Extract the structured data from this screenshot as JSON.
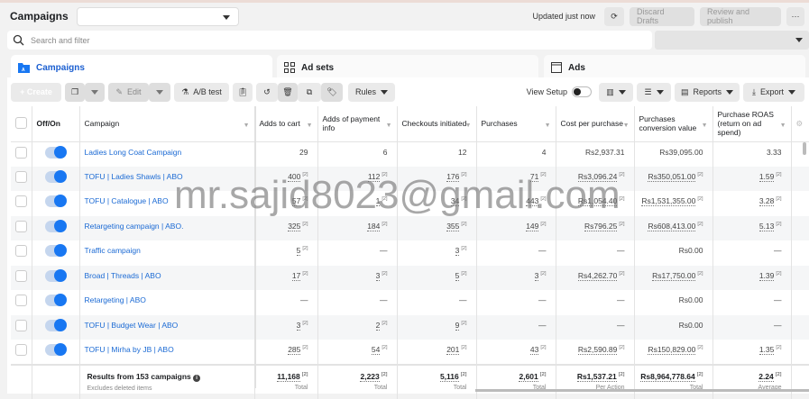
{
  "header": {
    "title": "Campaigns",
    "account_select": "",
    "updated": "Updated just now",
    "discard": "Discard Drafts",
    "review": "Review and publish",
    "more": "···"
  },
  "search": {
    "placeholder": "Search and filter"
  },
  "tabs": [
    {
      "label": "Campaigns",
      "icon": "folder-icon"
    },
    {
      "label": "Ad sets",
      "icon": "grid-icon"
    },
    {
      "label": "Ads",
      "icon": "window-icon"
    }
  ],
  "toolbar": {
    "create": "+ Create",
    "edit": "Edit",
    "ab_test": "A/B test",
    "rules": "Rules",
    "view_setup": "View Setup",
    "view_setup_on": false,
    "reports": "Reports",
    "export": "Export"
  },
  "table": {
    "columns": [
      "Off/On",
      "Campaign",
      "Adds to cart",
      "Adds of payment info",
      "Checkouts initiated",
      "Purchases",
      "Cost per purchase",
      "Purchases conversion value",
      "Purchase ROAS (return on ad spend)"
    ],
    "badge_label": "[2]",
    "rows": [
      {
        "name": "Ladies Long Coat Campaign",
        "on": true,
        "badged": false,
        "cells": [
          "29",
          "6",
          "12",
          "4",
          "Rs2,937.31",
          "Rs39,095.00",
          "3.33"
        ]
      },
      {
        "name": "TOFU | Ladies Shawls | ABO",
        "on": true,
        "badged": true,
        "cells": [
          "400",
          "112",
          "176",
          "71",
          "Rs3,096.24",
          "Rs350,051.00",
          "1.59"
        ]
      },
      {
        "name": "TOFU | Catalogue | ABO",
        "on": true,
        "badged": true,
        "cells": [
          "57",
          "1",
          "34",
          "443",
          "Rs1,054.40",
          "Rs1,531,355.00",
          "3.28"
        ]
      },
      {
        "name": "Retargeting campaign | ABO.",
        "on": true,
        "badged": true,
        "cells": [
          "325",
          "184",
          "355",
          "149",
          "Rs796.25",
          "Rs608,413.00",
          "5.13"
        ]
      },
      {
        "name": "Traffic campaign",
        "on": true,
        "badged": true,
        "cells": [
          "5",
          "—",
          "3",
          "—",
          "—",
          "Rs0.00",
          "—"
        ]
      },
      {
        "name": "Broad | Threads | ABO",
        "on": true,
        "badged": true,
        "cells": [
          "17",
          "3",
          "5",
          "3",
          "Rs4,262.70",
          "Rs17,750.00",
          "1.39"
        ]
      },
      {
        "name": "Retargeting | ABO",
        "on": true,
        "badged": true,
        "cells": [
          "—",
          "—",
          "—",
          "—",
          "—",
          "Rs0.00",
          "—"
        ]
      },
      {
        "name": "TOFU | Budget Wear | ABO",
        "on": true,
        "badged": true,
        "cells": [
          "3",
          "2",
          "9",
          "—",
          "—",
          "Rs0.00",
          "—"
        ]
      },
      {
        "name": "TOFU | Mirha by JB | ABO",
        "on": true,
        "badged": true,
        "cells": [
          "285",
          "54",
          "201",
          "43",
          "Rs2,590.89",
          "Rs150,829.00",
          "1.35"
        ]
      }
    ],
    "footer": {
      "results": "Results from 153 campaigns",
      "note": "Excludes deleted items",
      "cells": [
        {
          "v": "11,168",
          "s": "Total"
        },
        {
          "v": "2,223",
          "s": "Total"
        },
        {
          "v": "5,116",
          "s": "Total"
        },
        {
          "v": "2,601",
          "s": "Total"
        },
        {
          "v": "Rs1,537.21",
          "s": "Per Action"
        },
        {
          "v": "Rs8,964,778.64",
          "s": "Total"
        },
        {
          "v": "2.24",
          "s": "Average"
        }
      ]
    }
  },
  "watermark": "mr.sajid8023@gmail.com",
  "colors": {
    "accent": "#1877f2",
    "create": "#5bb318",
    "link": "#1b6ad4"
  }
}
